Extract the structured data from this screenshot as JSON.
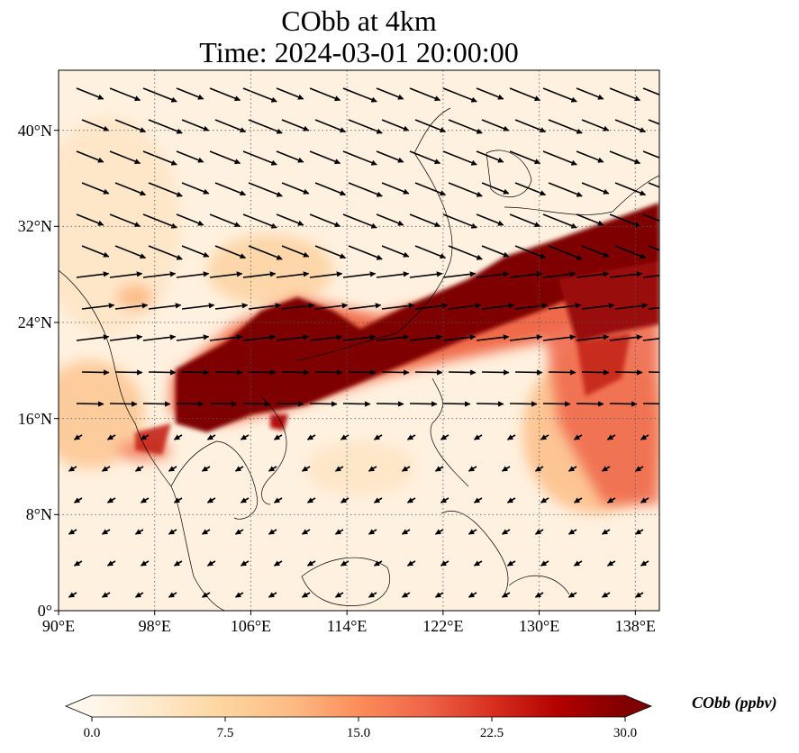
{
  "title": {
    "line1": "CObb at 4km",
    "line2": "Time: 2024-03-01 20:00:00"
  },
  "map": {
    "projection": "PlateCarree",
    "lon_range": [
      90,
      140
    ],
    "lat_range": [
      0,
      45
    ],
    "gridlines": "dotted",
    "x_ticks": [
      {
        "value": 90,
        "label": "90°E"
      },
      {
        "value": 98,
        "label": "98°E"
      },
      {
        "value": 106,
        "label": "106°E"
      },
      {
        "value": 114,
        "label": "114°E"
      },
      {
        "value": 122,
        "label": "122°E"
      },
      {
        "value": 130,
        "label": "130°E"
      },
      {
        "value": 138,
        "label": "138°E"
      }
    ],
    "y_ticks": [
      {
        "value": 0,
        "label": "0°"
      },
      {
        "value": 8,
        "label": "8°N"
      },
      {
        "value": 16,
        "label": "16°N"
      },
      {
        "value": 24,
        "label": "24°N"
      },
      {
        "value": 32,
        "label": "32°N"
      },
      {
        "value": 40,
        "label": "40°N"
      }
    ],
    "wind_vectors": "black quiver arrows, westerly flow north of ~18°N, northeasterly flow south",
    "plume": "high CObb band from northern Indochina east-northeast across Taiwan to south of Japan"
  },
  "colorbar": {
    "label": "CObb (ppbv)",
    "colormap": "OrRd",
    "range": [
      0.0,
      30.0
    ],
    "ticks": [
      {
        "value": 0.0,
        "label": "0.0"
      },
      {
        "value": 7.5,
        "label": "7.5"
      },
      {
        "value": 15.0,
        "label": "15.0"
      },
      {
        "value": 22.5,
        "label": "22.5"
      },
      {
        "value": 30.0,
        "label": "30.0"
      }
    ],
    "extend": "both",
    "colors": [
      "#fff7ec",
      "#fee8c8",
      "#fdd49e",
      "#fdbb84",
      "#fc8d59",
      "#ef6548",
      "#d7301f",
      "#b30000",
      "#7f0000"
    ]
  }
}
